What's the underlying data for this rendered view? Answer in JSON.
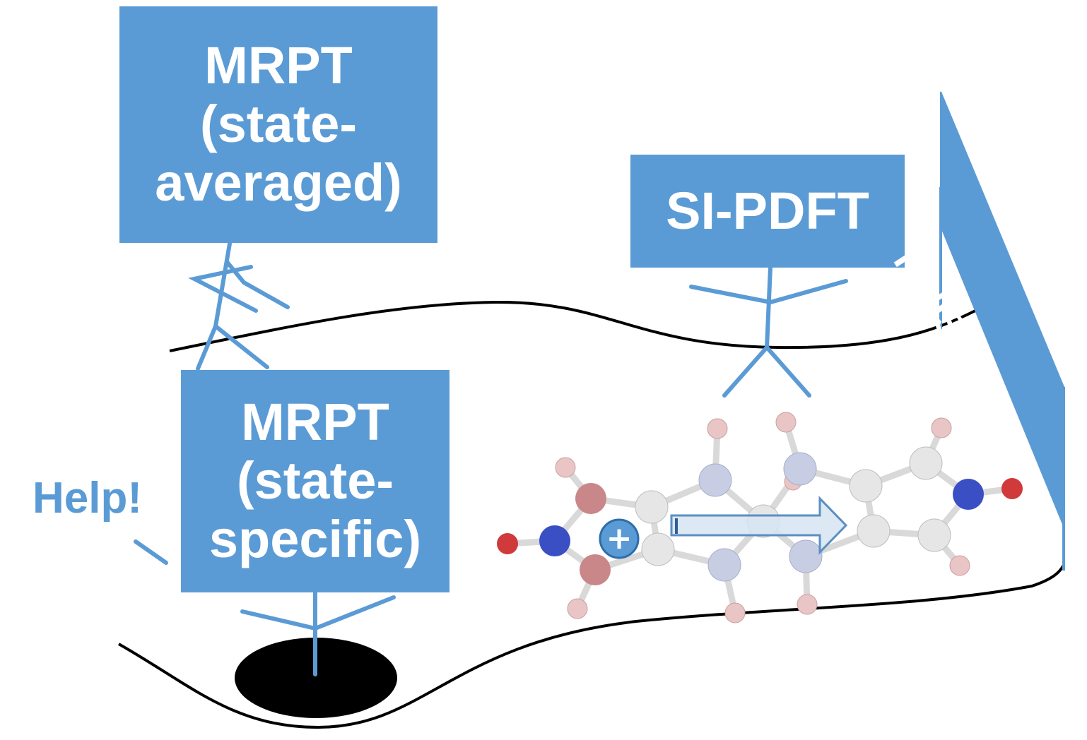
{
  "labels": {
    "mrpt_averaged": [
      "MRPT",
      "(state-",
      "averaged)"
    ],
    "mrpt_specific": [
      "MRPT",
      "(state-",
      "specific)"
    ],
    "si_pdft": "SI-PDFT",
    "help": "Help!",
    "finish": "FINISH",
    "charge": "+"
  },
  "colors": {
    "accent": "#5b9bd5",
    "terrain_line": "#000000",
    "well": "#000000",
    "flag": "#5b9bd5",
    "atom_carbon": "#e6e6e6",
    "atom_nitrogen": "#3a4fc4",
    "atom_oxygen": "#d03a3a",
    "atom_hydrogen": "#e9c5c5",
    "atom_partial_n": "#c7cde3",
    "atom_partial_o": "#c9878a"
  },
  "icons": {
    "stick_figures": [
      "stick-figure-averaged",
      "stick-figure-specific",
      "stick-figure-sipdft"
    ],
    "molecule": "molecule-ball-and-stick",
    "flag": "finish-flag"
  }
}
